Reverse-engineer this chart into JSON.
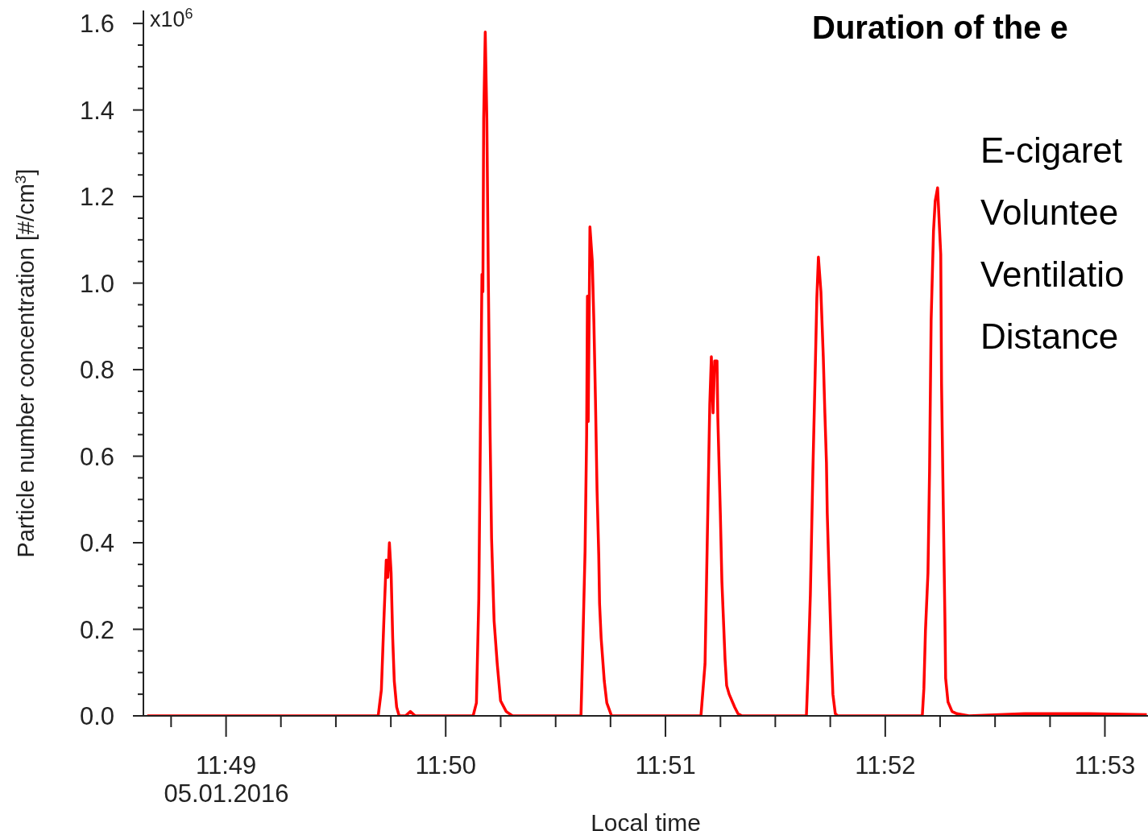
{
  "chart_data": {
    "type": "line",
    "title": "Duration of the e",
    "xlabel": "Local time",
    "ylabel": "Particle number concentration [#/cm$^{3}$]",
    "annotations": [
      "05.01.2016",
      "E-cigaret",
      "Voluntee",
      "Ventilatio",
      "Distance",
      "x10$^{6}$"
    ],
    "x": [
      11.81069,
      11.82821,
      11.82845,
      11.82864,
      11.82882,
      11.82894,
      11.82906,
      11.82919,
      11.82931,
      11.82943,
      11.82961,
      11.8298,
      11.83028,
      11.83065,
      11.83102,
      11.83541,
      11.83566,
      11.83584,
      11.83596,
      11.83608,
      11.83615,
      11.83621,
      11.83633,
      11.83645,
      11.83657,
      11.83669,
      11.83681,
      11.837,
      11.83724,
      11.83749,
      11.83792,
      11.8384,
      11.84359,
      11.84372,
      11.8439,
      11.84402,
      11.84408,
      11.84414,
      11.84427,
      11.84445,
      11.84457,
      11.84469,
      11.84481,
      11.84494,
      11.845,
      11.84512,
      11.84524,
      11.84536,
      11.84555,
      11.84591,
      11.85269,
      11.853,
      11.85312,
      11.85324,
      11.85336,
      11.85348,
      11.85361,
      11.85373,
      11.85391,
      11.85397,
      11.85416,
      11.85428,
      11.8544,
      11.85452,
      11.85464,
      11.85483,
      11.85525,
      11.8555,
      11.8558,
      11.86069,
      11.86081,
      11.86099,
      11.86118,
      11.86136,
      11.86148,
      11.8616,
      11.86179,
      11.86197,
      11.86209,
      11.86221,
      11.86227,
      11.8624,
      11.86258,
      11.8627,
      11.86288,
      11.86307,
      11.86948,
      11.8696,
      11.86972,
      11.86991,
      11.87003,
      11.87015,
      11.87033,
      11.87046,
      11.87064,
      11.87088,
      11.87094,
      11.87107,
      11.87119,
      11.87125,
      11.87143,
      11.87174,
      11.8721,
      11.87302,
      11.87723,
      11.88212,
      11.88651
    ],
    "series": [
      {
        "color": "#ff0000",
        "values": [
          0,
          0,
          0.06,
          0.22,
          0.36,
          0.32,
          0.4,
          0.33,
          0.18,
          0.08,
          0.02,
          0,
          0,
          0.01,
          0,
          0,
          0.03,
          0.27,
          0.65,
          1.02,
          0.98,
          1.38,
          1.58,
          1.38,
          0.99,
          0.67,
          0.41,
          0.22,
          0.12,
          0.035,
          0.01,
          0,
          0,
          0.15,
          0.38,
          0.65,
          0.97,
          0.68,
          1.13,
          1.05,
          0.91,
          0.73,
          0.52,
          0.37,
          0.26,
          0.18,
          0.13,
          0.08,
          0.03,
          0,
          0,
          0.12,
          0.32,
          0.52,
          0.72,
          0.83,
          0.7,
          0.82,
          0.82,
          0.69,
          0.47,
          0.31,
          0.22,
          0.13,
          0.07,
          0.05,
          0.02,
          0.005,
          0,
          0,
          0.1,
          0.28,
          0.565,
          0.8,
          0.965,
          1.06,
          0.98,
          0.83,
          0.7,
          0.585,
          0.47,
          0.33,
          0.15,
          0.05,
          0.005,
          0,
          0,
          0.063,
          0.197,
          0.33,
          0.565,
          0.913,
          1.12,
          1.19,
          1.22,
          1.066,
          0.768,
          0.487,
          0.238,
          0.087,
          0.032,
          0.01,
          0.005,
          0,
          0.005,
          0.005,
          0.003
        ]
      }
    ],
    "xlim": [
      11.8104,
      11.8866
    ],
    "ylim": [
      0,
      1.63
    ],
    "xticks": [
      {
        "value": 11.8125,
        "label": null
      },
      {
        "value": 11.81667,
        "label": "11:49"
      },
      {
        "value": 11.82083,
        "label": null
      },
      {
        "value": 11.825,
        "label": null
      },
      {
        "value": 11.82917,
        "label": null
      },
      {
        "value": 11.83333,
        "label": "11:50"
      },
      {
        "value": 11.8375,
        "label": null
      },
      {
        "value": 11.84167,
        "label": null
      },
      {
        "value": 11.84583,
        "label": null
      },
      {
        "value": 11.85,
        "label": "11:51"
      },
      {
        "value": 11.85417,
        "label": null
      },
      {
        "value": 11.85833,
        "label": null
      },
      {
        "value": 11.8625,
        "label": null
      },
      {
        "value": 11.86667,
        "label": "11:52"
      },
      {
        "value": 11.87083,
        "label": null
      },
      {
        "value": 11.875,
        "label": null
      },
      {
        "value": 11.87917,
        "label": null
      },
      {
        "value": 11.88333,
        "label": "11:53"
      }
    ],
    "yticks": [
      {
        "value": 0,
        "label": "0.0"
      },
      {
        "value": 0.05,
        "label": null
      },
      {
        "value": 0.1,
        "label": null
      },
      {
        "value": 0.15,
        "label": null
      },
      {
        "value": 0.2,
        "label": "0.2"
      },
      {
        "value": 0.25,
        "label": null
      },
      {
        "value": 0.3,
        "label": null
      },
      {
        "value": 0.35,
        "label": null
      },
      {
        "value": 0.4,
        "label": "0.4"
      },
      {
        "value": 0.45,
        "label": null
      },
      {
        "value": 0.5,
        "label": null
      },
      {
        "value": 0.55,
        "label": null
      },
      {
        "value": 0.6,
        "label": "0.6"
      },
      {
        "value": 0.65,
        "label": null
      },
      {
        "value": 0.7,
        "label": null
      },
      {
        "value": 0.75,
        "label": null
      },
      {
        "value": 0.8,
        "label": "0.8"
      },
      {
        "value": 0.85,
        "label": null
      },
      {
        "value": 0.9,
        "label": null
      },
      {
        "value": 0.95,
        "label": null
      },
      {
        "value": 1.0,
        "label": "1.0"
      },
      {
        "value": 1.05,
        "label": null
      },
      {
        "value": 1.1,
        "label": null
      },
      {
        "value": 1.15,
        "label": null
      },
      {
        "value": 1.2,
        "label": "1.2"
      },
      {
        "value": 1.25,
        "label": null
      },
      {
        "value": 1.3,
        "label": null
      },
      {
        "value": 1.35,
        "label": null
      },
      {
        "value": 1.4,
        "label": "1.4"
      },
      {
        "value": 1.45,
        "label": null
      },
      {
        "value": 1.5,
        "label": null
      },
      {
        "value": 1.55,
        "label": null
      },
      {
        "value": 1.6,
        "label": "1.6"
      }
    ],
    "marker": "none"
  }
}
